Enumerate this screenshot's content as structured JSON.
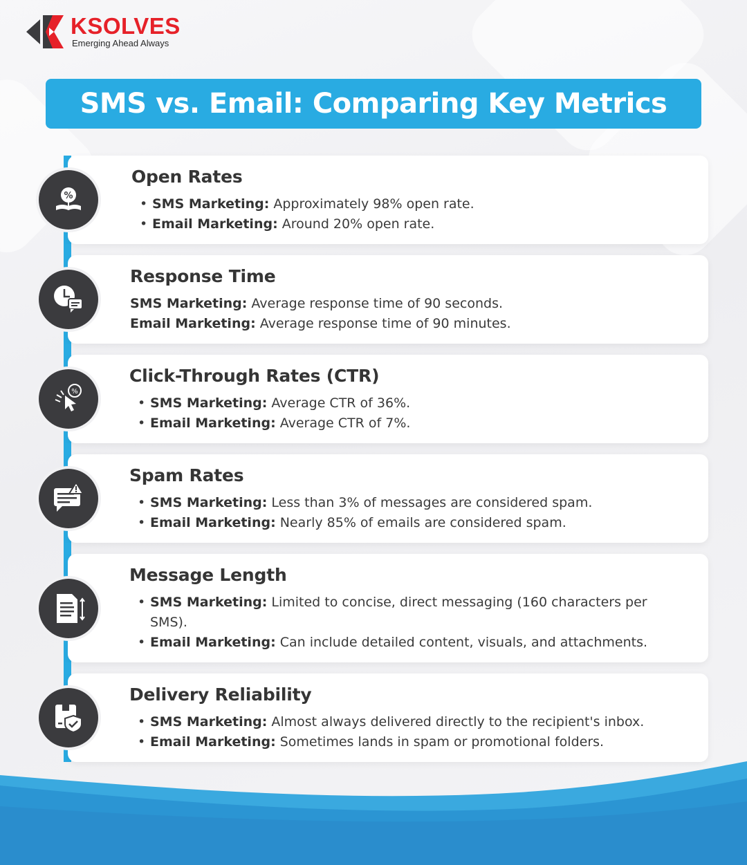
{
  "brand": {
    "name": "KSOLVES",
    "tagline": "Emerging Ahead Always",
    "colors": {
      "red": "#e62129",
      "dark": "#3b3b3e"
    }
  },
  "title": "SMS vs. Email: Comparing Key Metrics",
  "colors": {
    "accent": "#29abe2",
    "icon_bg": "#3b3b3e"
  },
  "metrics": [
    {
      "icon": "open-rate-icon",
      "title": "Open Rates",
      "bulleted": true,
      "items": [
        {
          "label": "SMS Marketing:",
          "text": "Approximately 98% open rate."
        },
        {
          "label": "Email Marketing:",
          "text": "Around 20% open rate."
        }
      ]
    },
    {
      "icon": "response-time-icon",
      "title": "Response Time",
      "bulleted": false,
      "items": [
        {
          "label": "SMS Marketing:",
          "text": "Average response time of 90 seconds."
        },
        {
          "label": "Email Marketing:",
          "text": "Average response time of 90 minutes."
        }
      ]
    },
    {
      "icon": "click-through-icon",
      "title": "Click-Through Rates (CTR)",
      "bulleted": true,
      "items": [
        {
          "label": "SMS Marketing:",
          "text": "Average CTR of 36%."
        },
        {
          "label": "Email Marketing:",
          "text": "Average CTR of 7%."
        }
      ]
    },
    {
      "icon": "spam-warning-icon",
      "title": "Spam Rates",
      "bulleted": true,
      "items": [
        {
          "label": "SMS Marketing:",
          "text": "Less than 3% of messages are considered spam."
        },
        {
          "label": "Email Marketing:",
          "text": "Nearly 85% of emails are considered spam."
        }
      ]
    },
    {
      "icon": "message-length-icon",
      "title": "Message Length",
      "bulleted": true,
      "items": [
        {
          "label": "SMS Marketing:",
          "text": "Limited to concise, direct messaging (160 characters per SMS)."
        },
        {
          "label": "Email Marketing:",
          "text": "Can include detailed content, visuals, and attachments."
        }
      ]
    },
    {
      "icon": "delivery-shield-icon",
      "title": "Delivery Reliability",
      "bulleted": true,
      "items": [
        {
          "label": "SMS Marketing:",
          "text": "Almost always delivered directly to the recipient's inbox."
        },
        {
          "label": "Email Marketing:",
          "text": "Sometimes lands in spam or promotional folders."
        }
      ]
    }
  ]
}
